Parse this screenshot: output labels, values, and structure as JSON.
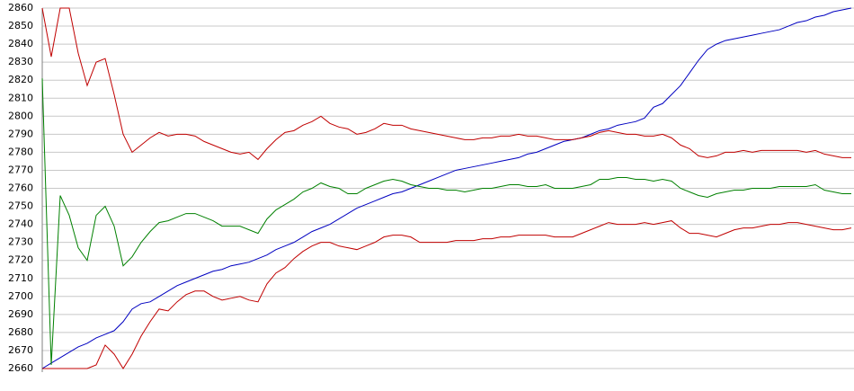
{
  "chart_data": {
    "type": "line",
    "ylim": [
      2660,
      2860
    ],
    "yticks": [
      2660,
      2670,
      2680,
      2690,
      2700,
      2710,
      2720,
      2730,
      2740,
      2750,
      2760,
      2770,
      2780,
      2790,
      2800,
      2810,
      2820,
      2830,
      2840,
      2850,
      2860
    ],
    "grid": true,
    "series": [
      {
        "color": "#0000c0",
        "values": [
          2660,
          2663,
          2666,
          2669,
          2672,
          2674,
          2677,
          2679,
          2681,
          2686,
          2693,
          2696,
          2697,
          2700,
          2703,
          2706,
          2708,
          2710,
          2712,
          2714,
          2715,
          2717,
          2718,
          2719,
          2721,
          2723,
          2726,
          2728,
          2730,
          2733,
          2736,
          2738,
          2740,
          2743,
          2746,
          2749,
          2751,
          2753,
          2755,
          2757,
          2758,
          2760,
          2762,
          2764,
          2766,
          2768,
          2770,
          2771,
          2772,
          2773,
          2774,
          2775,
          2776,
          2777,
          2779,
          2780,
          2782,
          2784,
          2786,
          2787,
          2788,
          2790,
          2792,
          2793,
          2795,
          2796,
          2797,
          2799,
          2805,
          2807,
          2812,
          2817,
          2824,
          2831,
          2837,
          2840,
          2842,
          2843,
          2844,
          2845,
          2846,
          2847,
          2848,
          2850,
          2852,
          2853,
          2855,
          2856,
          2858,
          2859,
          2860
        ]
      },
      {
        "color": "#c00000",
        "values": [
          2860,
          2833,
          2860,
          2860,
          2835,
          2817,
          2830,
          2832,
          2812,
          2790,
          2780,
          2784,
          2788,
          2791,
          2789,
          2790,
          2790,
          2789,
          2786,
          2784,
          2782,
          2780,
          2779,
          2780,
          2776,
          2782,
          2787,
          2791,
          2792,
          2795,
          2797,
          2800,
          2796,
          2794,
          2793,
          2790,
          2791,
          2793,
          2796,
          2795,
          2795,
          2793,
          2792,
          2791,
          2790,
          2789,
          2788,
          2787,
          2787,
          2788,
          2788,
          2789,
          2789,
          2790,
          2789,
          2789,
          2788,
          2787,
          2787,
          2787,
          2788,
          2789,
          2791,
          2792,
          2791,
          2790,
          2790,
          2789,
          2789,
          2790,
          2788,
          2784,
          2782,
          2778,
          2777,
          2778,
          2780,
          2780,
          2781,
          2780,
          2781,
          2781,
          2781,
          2781,
          2781,
          2780,
          2781,
          2779,
          2778,
          2777,
          2777
        ]
      },
      {
        "color": "#008000",
        "values": [
          2821,
          2662,
          2756,
          2745,
          2727,
          2720,
          2745,
          2750,
          2739,
          2717,
          2722,
          2730,
          2736,
          2741,
          2742,
          2744,
          2746,
          2746,
          2744,
          2742,
          2739,
          2739,
          2739,
          2737,
          2735,
          2743,
          2748,
          2751,
          2754,
          2758,
          2760,
          2763,
          2761,
          2760,
          2757,
          2757,
          2760,
          2762,
          2764,
          2765,
          2764,
          2762,
          2761,
          2760,
          2760,
          2759,
          2759,
          2758,
          2759,
          2760,
          2760,
          2761,
          2762,
          2762,
          2761,
          2761,
          2762,
          2760,
          2760,
          2760,
          2761,
          2762,
          2765,
          2765,
          2766,
          2766,
          2765,
          2765,
          2764,
          2765,
          2764,
          2760,
          2758,
          2756,
          2755,
          2757,
          2758,
          2759,
          2759,
          2760,
          2760,
          2760,
          2761,
          2761,
          2761,
          2761,
          2762,
          2759,
          2758,
          2757,
          2757
        ]
      },
      {
        "color": "#c00000",
        "values": [
          2660,
          2660,
          2660,
          2660,
          2660,
          2660,
          2662,
          2673,
          2668,
          2660,
          2668,
          2678,
          2686,
          2693,
          2692,
          2697,
          2701,
          2703,
          2703,
          2700,
          2698,
          2699,
          2700,
          2698,
          2697,
          2707,
          2713,
          2716,
          2721,
          2725,
          2728,
          2730,
          2730,
          2728,
          2727,
          2726,
          2728,
          2730,
          2733,
          2734,
          2734,
          2733,
          2730,
          2730,
          2730,
          2730,
          2731,
          2731,
          2731,
          2732,
          2732,
          2733,
          2733,
          2734,
          2734,
          2734,
          2734,
          2733,
          2733,
          2733,
          2735,
          2737,
          2739,
          2741,
          2740,
          2740,
          2740,
          2741,
          2740,
          2741,
          2742,
          2738,
          2735,
          2735,
          2734,
          2733,
          2735,
          2737,
          2738,
          2738,
          2739,
          2740,
          2740,
          2741,
          2741,
          2740,
          2739,
          2738,
          2737,
          2737,
          2738
        ]
      }
    ]
  }
}
